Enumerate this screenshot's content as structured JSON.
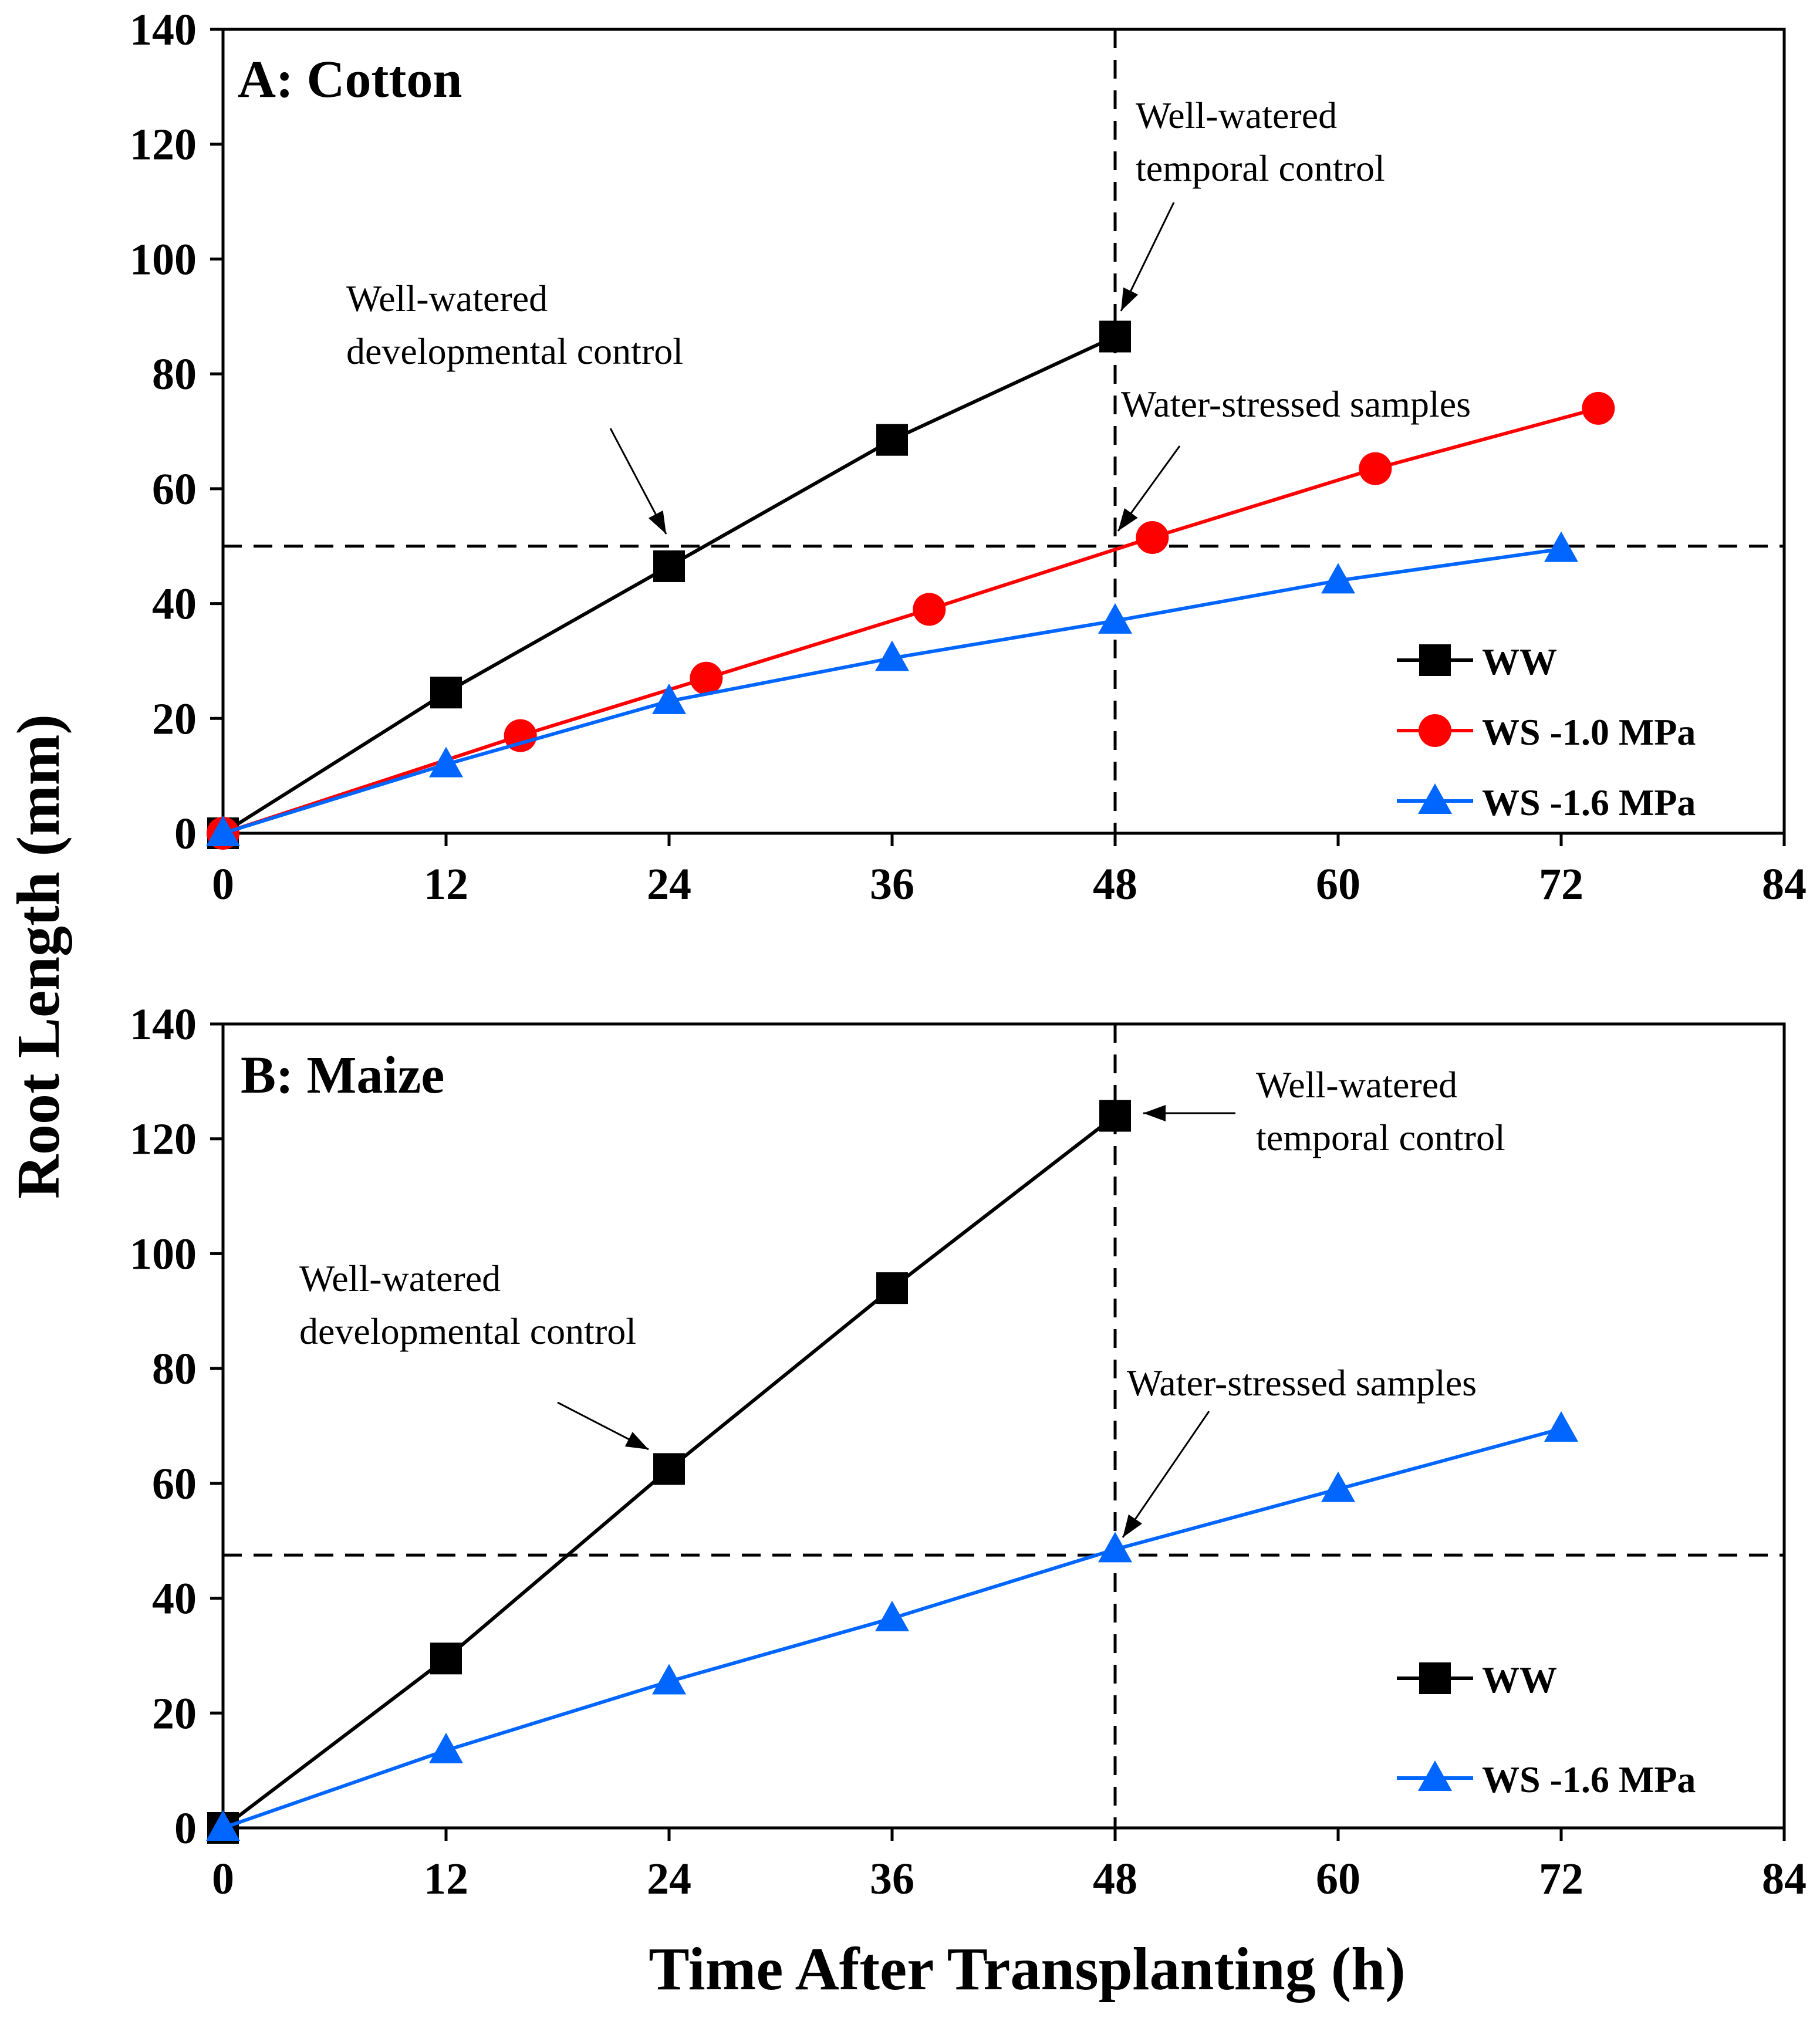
{
  "figure": {
    "ylabel": "Root Length (mm)",
    "xlabel": "Time After Transplanting (h)"
  },
  "chart_data": [
    {
      "type": "line",
      "title": "A: Cotton",
      "xlabel": "Time After Transplanting (h)",
      "ylabel": "Root Length (mm)",
      "xlim": [
        0,
        84
      ],
      "ylim": [
        0,
        140
      ],
      "xticks": [
        0,
        12,
        24,
        36,
        48,
        60,
        72,
        84
      ],
      "yticks": [
        0,
        20,
        40,
        60,
        80,
        100,
        120,
        140
      ],
      "grid": false,
      "legend": "bottom-right",
      "series": [
        {
          "name": "WW",
          "color": "#000000",
          "marker": "square",
          "x": [
            0,
            12,
            24,
            36,
            48
          ],
          "y": [
            0,
            24.5,
            46.5,
            68.5,
            86.5
          ]
        },
        {
          "name": "WS -1.0 MPa",
          "color": "#ff0000",
          "marker": "circle",
          "x": [
            0,
            16,
            26,
            38,
            50,
            62,
            74
          ],
          "y": [
            0,
            17,
            27,
            39,
            51.5,
            63.5,
            74
          ]
        },
        {
          "name": "WS -1.6 MPa",
          "color": "#0066ff",
          "marker": "triangle",
          "x": [
            0,
            12,
            24,
            36,
            48,
            60,
            72
          ],
          "y": [
            0,
            12,
            23,
            30.5,
            37,
            44,
            49.5
          ]
        }
      ],
      "reference_lines": {
        "horizontal_y": 50,
        "vertical_x": 48
      },
      "annotations": [
        {
          "lines": [
            "Well-watered",
            "developmental control"
          ],
          "target": [
            24,
            46.5
          ]
        },
        {
          "lines": [
            "Well-watered",
            "temporal control"
          ],
          "target": [
            48,
            86.5
          ]
        },
        {
          "lines": [
            "Water-stressed samples"
          ],
          "target": [
            48,
            50
          ]
        }
      ]
    },
    {
      "type": "line",
      "title": "B: Maize",
      "xlabel": "Time After Transplanting (h)",
      "ylabel": "Root Length (mm)",
      "xlim": [
        0,
        84
      ],
      "ylim": [
        0,
        140
      ],
      "xticks": [
        0,
        12,
        24,
        36,
        48,
        60,
        72,
        84
      ],
      "yticks": [
        0,
        20,
        40,
        60,
        80,
        100,
        120,
        140
      ],
      "grid": false,
      "legend": "bottom-right",
      "series": [
        {
          "name": "WW",
          "color": "#000000",
          "marker": "square",
          "x": [
            0,
            12,
            24,
            36,
            48
          ],
          "y": [
            0,
            29.5,
            62.5,
            94,
            124
          ]
        },
        {
          "name": "WS -1.6 MPa",
          "color": "#0066ff",
          "marker": "triangle",
          "x": [
            0,
            12,
            24,
            36,
            48,
            60,
            72
          ],
          "y": [
            0,
            13.5,
            25.5,
            36.5,
            48.5,
            59,
            69.5
          ]
        }
      ],
      "reference_lines": {
        "horizontal_y": 47.5,
        "vertical_x": 48
      },
      "annotations": [
        {
          "lines": [
            "Well-watered",
            "developmental control"
          ],
          "target": [
            24,
            62.5
          ]
        },
        {
          "lines": [
            "Well-watered",
            "temporal control"
          ],
          "target": [
            48,
            124
          ]
        },
        {
          "lines": [
            "Water-stressed samples"
          ],
          "target": [
            48,
            48.5
          ]
        }
      ]
    }
  ]
}
